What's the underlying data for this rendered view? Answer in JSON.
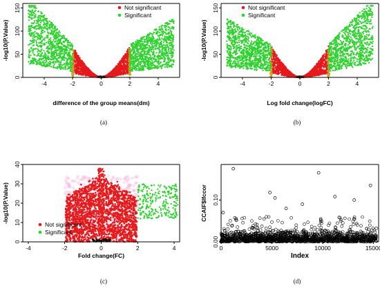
{
  "chart_data": [
    {
      "id": "a",
      "panel_label": "(a)",
      "type": "scatter",
      "chart_kind": "volcano",
      "xlabel": "difference of the group means(dm)",
      "ylabel": "-log10(P.Value)",
      "xlim": [
        -5.5,
        5.5
      ],
      "ylim": [
        0,
        160
      ],
      "xticks": [
        -4,
        -2,
        0,
        2,
        4
      ],
      "yticks": [
        0,
        50,
        100,
        150
      ],
      "threshold": 2,
      "legend": {
        "position": "top-center",
        "entries": [
          {
            "label": "Not significant",
            "color": "#e41a1c"
          },
          {
            "label": "Significant",
            "color": "#2fd12f"
          }
        ]
      },
      "series": [
        {
          "name": "Not significant",
          "color": "#e41a1c",
          "description_points": [
            [
              -2,
              62
            ],
            [
              -1.5,
              40
            ],
            [
              -1,
              22
            ],
            [
              -0.5,
              9
            ],
            [
              0,
              0
            ],
            [
              0.5,
              9
            ],
            [
              1,
              22
            ],
            [
              1.5,
              40
            ],
            [
              2,
              62
            ]
          ]
        },
        {
          "name": "Significant",
          "color": "#2fd12f",
          "description_points": [
            [
              -5,
              150
            ],
            [
              -4.5,
              135
            ],
            [
              -4,
              115
            ],
            [
              -3,
              85
            ],
            [
              -2,
              62
            ],
            [
              2,
              62
            ],
            [
              3,
              85
            ],
            [
              4,
              100
            ],
            [
              4.8,
              110
            ]
          ]
        }
      ]
    },
    {
      "id": "b",
      "panel_label": "(b)",
      "type": "scatter",
      "chart_kind": "volcano",
      "xlabel": "Log fold change(logFC)",
      "ylabel": "-log10(P.Value)",
      "xlim": [
        -5.5,
        5.5
      ],
      "ylim": [
        0,
        160
      ],
      "xticks": [
        -4,
        -2,
        0,
        2,
        4
      ],
      "yticks": [
        0,
        50,
        100,
        150
      ],
      "threshold": 2,
      "legend": {
        "position": "top-left",
        "entries": [
          {
            "label": "Not significant",
            "color": "#e41a1c"
          },
          {
            "label": "Significant",
            "color": "#2fd12f"
          }
        ]
      },
      "series": [
        {
          "name": "Not significant",
          "color": "#e41a1c",
          "description_points": [
            [
              -2,
              62
            ],
            [
              -1.5,
              40
            ],
            [
              -1,
              22
            ],
            [
              -0.5,
              9
            ],
            [
              0,
              0
            ],
            [
              0.5,
              9
            ],
            [
              1,
              22
            ],
            [
              1.5,
              40
            ],
            [
              2,
              62
            ]
          ]
        },
        {
          "name": "Significant",
          "color": "#2fd12f",
          "description_points": [
            [
              -5,
              110
            ],
            [
              -4,
              100
            ],
            [
              -3,
              85
            ],
            [
              -2,
              62
            ],
            [
              2,
              62
            ],
            [
              3,
              85
            ],
            [
              4,
              115
            ],
            [
              4.5,
              135
            ],
            [
              5,
              150
            ]
          ]
        }
      ]
    },
    {
      "id": "c",
      "panel_label": "(c)",
      "type": "scatter",
      "chart_kind": "volcano",
      "xlabel": "Fold change(FC)",
      "ylabel": "-log10(P.Value)",
      "xlim": [
        -4.3,
        4.3
      ],
      "ylim": [
        0,
        40
      ],
      "xticks": [
        -4,
        -2,
        0,
        2,
        4
      ],
      "yticks": [
        0,
        10,
        20,
        30,
        40
      ],
      "legend": {
        "position": "bottom-left",
        "entries": [
          {
            "label": "Not significant",
            "color": "#e41a1c"
          },
          {
            "label": "Significant",
            "color": "#2fd12f"
          }
        ]
      },
      "series": [
        {
          "name": "Not significant",
          "color": "#e41a1c",
          "description_points": [
            [
              -1.8,
              31
            ],
            [
              -1,
              33
            ],
            [
              0,
              36
            ],
            [
              1,
              31
            ],
            [
              1.9,
              27
            ],
            [
              0,
              0
            ]
          ]
        },
        {
          "name": "Significant",
          "color": "#2fd12f",
          "description_points": [
            [
              2,
              28
            ],
            [
              3,
              24
            ],
            [
              4,
              22
            ],
            [
              2.5,
              12
            ],
            [
              3.5,
              16
            ]
          ]
        }
      ]
    },
    {
      "id": "d",
      "panel_label": "(d)",
      "type": "scatter",
      "xlabel": "Index",
      "ylabel": "CCAIF$lfccor",
      "xlim": [
        0,
        15500
      ],
      "ylim": [
        0,
        0.185
      ],
      "xticks": [
        0,
        5000,
        10000,
        15000
      ],
      "yticks": [
        0.0,
        0.1
      ],
      "ytick_labels": [
        "0.00",
        "0.10"
      ],
      "marker": "open-circle",
      "outliers": [
        {
          "x": 1200,
          "y": 0.175
        },
        {
          "x": 9600,
          "y": 0.165
        },
        {
          "x": 14700,
          "y": 0.135
        },
        {
          "x": 4800,
          "y": 0.118
        },
        {
          "x": 5300,
          "y": 0.105
        },
        {
          "x": 11200,
          "y": 0.108
        },
        {
          "x": 8000,
          "y": 0.09
        },
        {
          "x": 13100,
          "y": 0.1
        },
        {
          "x": 200,
          "y": 0.07
        },
        {
          "x": 6400,
          "y": 0.08
        }
      ]
    }
  ]
}
